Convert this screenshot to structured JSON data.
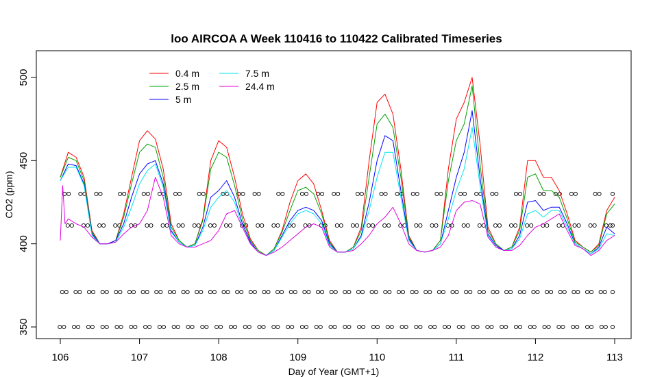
{
  "chart_data": {
    "type": "line",
    "title": "loo AIRCOA A  Week 110416 to 110422  Calibrated Timeseries",
    "xlabel": "Day of Year (GMT+1)",
    "ylabel": "CO2 (ppm)",
    "xlim": [
      106,
      113
    ],
    "ylim": [
      350,
      510
    ],
    "x_ticks": [
      106,
      107,
      108,
      109,
      110,
      111,
      112,
      113
    ],
    "y_ticks": [
      350,
      400,
      450,
      500
    ],
    "grid": false,
    "legend_position": "top-left",
    "series": [
      {
        "name": "0.4 m",
        "color": "#ff0000",
        "x": [
          106.0,
          106.1,
          106.2,
          106.3,
          106.4,
          106.5,
          106.6,
          106.7,
          106.8,
          106.9,
          107.0,
          107.1,
          107.2,
          107.3,
          107.4,
          107.5,
          107.6,
          107.7,
          107.8,
          107.9,
          108.0,
          108.1,
          108.2,
          108.3,
          108.4,
          108.5,
          108.6,
          108.7,
          108.8,
          108.9,
          109.0,
          109.1,
          109.2,
          109.3,
          109.4,
          109.5,
          109.6,
          109.7,
          109.8,
          109.9,
          110.0,
          110.1,
          110.2,
          110.3,
          110.4,
          110.5,
          110.6,
          110.7,
          110.8,
          110.9,
          111.0,
          111.1,
          111.2,
          111.3,
          111.4,
          111.5,
          111.6,
          111.7,
          111.8,
          111.9,
          112.0,
          112.1,
          112.2,
          112.3,
          112.4,
          112.5,
          112.6,
          112.7,
          112.8,
          112.9,
          113.0
        ],
        "y": [
          440,
          455,
          452,
          440,
          408,
          400,
          400,
          402,
          418,
          440,
          462,
          468,
          463,
          445,
          412,
          402,
          398,
          400,
          415,
          450,
          462,
          458,
          440,
          418,
          403,
          396,
          393,
          397,
          408,
          425,
          438,
          442,
          436,
          420,
          402,
          395,
          395,
          398,
          410,
          450,
          485,
          490,
          478,
          445,
          405,
          396,
          395,
          396,
          402,
          445,
          475,
          485,
          500,
          460,
          410,
          400,
          396,
          398,
          410,
          450,
          450,
          440,
          440,
          432,
          418,
          402,
          398,
          395,
          400,
          420,
          428
        ]
      },
      {
        "name": "2.5 m",
        "color": "#00a000",
        "x": [
          106.0,
          106.1,
          106.2,
          106.3,
          106.4,
          106.5,
          106.6,
          106.7,
          106.8,
          106.9,
          107.0,
          107.1,
          107.2,
          107.3,
          107.4,
          107.5,
          107.6,
          107.7,
          107.8,
          107.9,
          108.0,
          108.1,
          108.2,
          108.3,
          108.4,
          108.5,
          108.6,
          108.7,
          108.8,
          108.9,
          109.0,
          109.1,
          109.2,
          109.3,
          109.4,
          109.5,
          109.6,
          109.7,
          109.8,
          109.9,
          110.0,
          110.1,
          110.2,
          110.3,
          110.4,
          110.5,
          110.6,
          110.7,
          110.8,
          110.9,
          111.0,
          111.1,
          111.2,
          111.3,
          111.4,
          111.5,
          111.6,
          111.7,
          111.8,
          111.9,
          112.0,
          112.1,
          112.2,
          112.3,
          112.4,
          112.5,
          112.6,
          112.7,
          112.8,
          112.9,
          113.0
        ],
        "y": [
          440,
          452,
          450,
          438,
          407,
          400,
          400,
          402,
          416,
          436,
          455,
          460,
          458,
          440,
          410,
          402,
          398,
          400,
          414,
          445,
          455,
          452,
          435,
          415,
          402,
          396,
          393,
          397,
          407,
          420,
          432,
          434,
          430,
          418,
          401,
          395,
          395,
          398,
          408,
          440,
          472,
          478,
          470,
          440,
          404,
          396,
          395,
          396,
          402,
          438,
          462,
          472,
          495,
          448,
          408,
          400,
          396,
          398,
          408,
          440,
          442,
          432,
          432,
          428,
          415,
          401,
          398,
          395,
          399,
          418,
          424
        ]
      },
      {
        "name": "5 m",
        "color": "#0000ff",
        "x": [
          106.0,
          106.1,
          106.2,
          106.3,
          106.4,
          106.5,
          106.6,
          106.7,
          106.8,
          106.9,
          107.0,
          107.1,
          107.2,
          107.3,
          107.4,
          107.5,
          107.6,
          107.7,
          107.8,
          107.9,
          108.0,
          108.1,
          108.2,
          108.3,
          108.4,
          108.5,
          108.6,
          108.7,
          108.8,
          108.9,
          109.0,
          109.1,
          109.2,
          109.3,
          109.4,
          109.5,
          109.6,
          109.7,
          109.8,
          109.9,
          110.0,
          110.1,
          110.2,
          110.3,
          110.4,
          110.5,
          110.6,
          110.7,
          110.8,
          110.9,
          111.0,
          111.1,
          111.2,
          111.3,
          111.4,
          111.5,
          111.6,
          111.7,
          111.8,
          111.9,
          112.0,
          112.1,
          112.2,
          112.3,
          112.4,
          112.5,
          112.6,
          112.7,
          112.8,
          112.9,
          113.0
        ],
        "y": [
          438,
          448,
          447,
          436,
          406,
          400,
          400,
          402,
          412,
          428,
          442,
          448,
          450,
          436,
          408,
          401,
          398,
          399,
          410,
          428,
          432,
          438,
          428,
          412,
          401,
          395,
          393,
          396,
          405,
          414,
          420,
          422,
          420,
          414,
          400,
          395,
          395,
          397,
          405,
          425,
          450,
          465,
          462,
          432,
          403,
          396,
          395,
          396,
          400,
          420,
          440,
          455,
          480,
          440,
          406,
          399,
          396,
          397,
          405,
          425,
          426,
          420,
          422,
          422,
          412,
          400,
          397,
          394,
          398,
          410,
          406
        ]
      },
      {
        "name": "7.5 m",
        "color": "#00e5ee",
        "x": [
          106.0,
          106.1,
          106.2,
          106.3,
          106.4,
          106.5,
          106.6,
          106.7,
          106.8,
          106.9,
          107.0,
          107.1,
          107.2,
          107.3,
          107.4,
          107.5,
          107.6,
          107.7,
          107.8,
          107.9,
          108.0,
          108.1,
          108.2,
          108.3,
          108.4,
          108.5,
          108.6,
          108.7,
          108.8,
          108.9,
          109.0,
          109.1,
          109.2,
          109.3,
          109.4,
          109.5,
          109.6,
          109.7,
          109.8,
          109.9,
          110.0,
          110.1,
          110.2,
          110.3,
          110.4,
          110.5,
          110.6,
          110.7,
          110.8,
          110.9,
          111.0,
          111.1,
          111.2,
          111.3,
          111.4,
          111.5,
          111.6,
          111.7,
          111.8,
          111.9,
          112.0,
          112.1,
          112.2,
          112.3,
          112.4,
          112.5,
          112.6,
          112.7,
          112.8,
          112.9,
          113.0
        ],
        "y": [
          438,
          446,
          446,
          435,
          405,
          400,
          400,
          401,
          410,
          422,
          436,
          444,
          448,
          434,
          407,
          401,
          398,
          399,
          408,
          422,
          428,
          432,
          425,
          410,
          400,
          395,
          393,
          396,
          404,
          412,
          418,
          420,
          418,
          412,
          399,
          395,
          395,
          397,
          404,
          420,
          440,
          455,
          455,
          428,
          402,
          396,
          395,
          396,
          400,
          415,
          432,
          445,
          470,
          435,
          405,
          398,
          396,
          397,
          403,
          418,
          420,
          416,
          420,
          420,
          410,
          400,
          397,
          394,
          397,
          406,
          405
        ]
      },
      {
        "name": "24.4 m",
        "color": "#e000e0",
        "x": [
          106.0,
          106.03,
          106.06,
          106.1,
          106.2,
          106.3,
          106.4,
          106.5,
          106.6,
          106.7,
          106.8,
          106.9,
          107.0,
          107.1,
          107.2,
          107.3,
          107.4,
          107.5,
          107.6,
          107.7,
          107.8,
          107.9,
          108.0,
          108.1,
          108.2,
          108.3,
          108.4,
          108.5,
          108.6,
          108.7,
          108.8,
          108.9,
          109.0,
          109.1,
          109.2,
          109.3,
          109.4,
          109.5,
          109.6,
          109.7,
          109.8,
          109.9,
          110.0,
          110.1,
          110.2,
          110.3,
          110.4,
          110.5,
          110.6,
          110.7,
          110.8,
          110.9,
          111.0,
          111.1,
          111.2,
          111.3,
          111.4,
          111.5,
          111.6,
          111.7,
          111.8,
          111.9,
          112.0,
          112.1,
          112.2,
          112.3,
          112.4,
          112.5,
          112.6,
          112.7,
          112.8,
          112.9,
          113.0
        ],
        "y": [
          402,
          435,
          412,
          415,
          412,
          410,
          404,
          400,
          400,
          401,
          406,
          410,
          412,
          420,
          440,
          428,
          405,
          400,
          398,
          398,
          400,
          402,
          408,
          418,
          420,
          410,
          400,
          395,
          393,
          395,
          398,
          402,
          406,
          410,
          412,
          410,
          398,
          395,
          395,
          396,
          400,
          405,
          412,
          416,
          422,
          412,
          400,
          396,
          395,
          396,
          398,
          405,
          420,
          425,
          426,
          424,
          404,
          398,
          396,
          396,
          399,
          405,
          410,
          412,
          415,
          418,
          408,
          399,
          397,
          393,
          396,
          402,
          405
        ]
      }
    ],
    "marker_rows": [
      {
        "y": 430,
        "x": [
          106.08,
          106.28,
          106.48,
          106.78,
          107.08,
          107.28,
          107.48,
          107.78,
          108.08,
          108.28,
          108.48,
          108.78,
          109.08,
          109.28,
          109.48,
          109.78,
          110.08,
          110.28,
          110.48,
          110.78,
          111.08,
          111.28,
          111.48,
          111.78,
          112.08,
          112.28,
          112.48,
          112.78,
          113.0
        ]
      },
      {
        "y": 411,
        "x": [
          106.12,
          106.32,
          106.52,
          106.72,
          106.92,
          107.12,
          107.32,
          107.52,
          107.72,
          107.92,
          108.12,
          108.32,
          108.52,
          108.72,
          108.92,
          109.12,
          109.32,
          109.52,
          109.72,
          109.92,
          110.12,
          110.32,
          110.52,
          110.72,
          110.92,
          111.12,
          111.32,
          111.52,
          111.72,
          111.92,
          112.12,
          112.32,
          112.52,
          112.72,
          112.92,
          113.0
        ]
      },
      {
        "y": 371,
        "x": [
          106.05,
          106.22,
          106.39,
          106.56,
          106.73,
          106.9,
          107.07,
          107.24,
          107.41,
          107.58,
          107.75,
          107.92,
          108.09,
          108.26,
          108.43,
          108.6,
          108.77,
          108.94,
          109.11,
          109.28,
          109.45,
          109.62,
          109.79,
          109.96,
          110.13,
          110.3,
          110.47,
          110.64,
          110.81,
          110.98,
          111.15,
          111.32,
          111.49,
          111.66,
          111.83,
          112.0,
          112.17,
          112.34,
          112.51,
          112.68,
          112.85,
          113.0
        ]
      },
      {
        "y": 350,
        "x": [
          106.02,
          106.2,
          106.38,
          106.56,
          106.74,
          106.92,
          107.1,
          107.28,
          107.46,
          107.64,
          107.82,
          108.0,
          108.18,
          108.36,
          108.54,
          108.72,
          108.9,
          109.08,
          109.26,
          109.44,
          109.62,
          109.8,
          109.98,
          110.16,
          110.34,
          110.52,
          110.7,
          110.88,
          111.06,
          111.24,
          111.42,
          111.6,
          111.78,
          111.96,
          112.14,
          112.32,
          112.5,
          112.68,
          112.86,
          113.0
        ]
      }
    ]
  }
}
